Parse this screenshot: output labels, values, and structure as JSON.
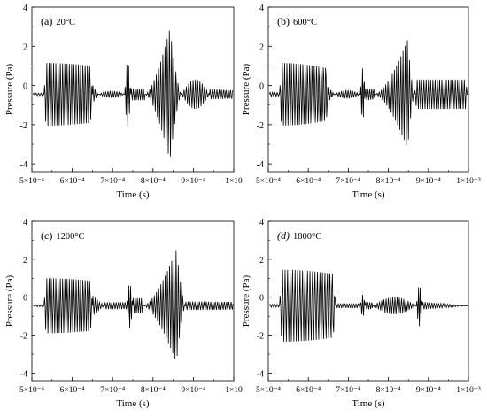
{
  "figure": {
    "background": "#ffffff",
    "line_color": "#000000"
  },
  "chart_data": [
    {
      "type": "line",
      "panel_label": "(a)",
      "panel_temp": "20°C",
      "xlabel": "Time (s)",
      "ylabel": "Pressure (Pa)",
      "xlim": [
        0.0005,
        0.001
      ],
      "ylim": [
        -4.4,
        4
      ],
      "xticks": [
        "5×10⁻⁴",
        "6×10⁻⁴",
        "7×10⁻⁴",
        "8×10⁻⁴",
        "9×10⁻⁴",
        "1×10"
      ],
      "yticks": [
        "4",
        "2",
        "0",
        "-2",
        "-4"
      ],
      "ytick_values": [
        4,
        2,
        0,
        -2,
        -4
      ],
      "signal": {
        "baseline": -0.45,
        "segments": [
          {
            "t0": 0.000503,
            "t1": 0.00053,
            "amp": 0.06,
            "period": 6e-06
          },
          {
            "t0": 0.00053,
            "t1": 0.00065,
            "amp": 1.6,
            "period": 5.6e-06,
            "flat": true
          },
          {
            "t0": 0.00065,
            "t1": 0.000665,
            "amp": 0.5,
            "period": 5.2e-06,
            "decay": true
          },
          {
            "t0": 0.000665,
            "t1": 0.00073,
            "amp": 0.18,
            "period": 5.5e-06,
            "bump": true
          },
          {
            "t0": 0.00073,
            "t1": 0.000745,
            "amp": 1.7,
            "period": 4.2e-06,
            "burst": true
          },
          {
            "t0": 0.000745,
            "t1": 0.00078,
            "amp": 0.3,
            "period": 5e-06
          },
          {
            "t0": 0.00078,
            "t1": 0.00087,
            "amp": 3.6,
            "period": 5.4e-06,
            "swell": true,
            "peak_at": 0.000842
          },
          {
            "t0": 0.00087,
            "t1": 0.00094,
            "amp": 0.75,
            "period": 5.6e-06,
            "bump": true
          },
          {
            "t0": 0.00094,
            "t1": 0.000998,
            "amp": 0.25,
            "period": 5.6e-06
          }
        ]
      }
    },
    {
      "type": "line",
      "panel_label": "(b)",
      "panel_temp": "600°C",
      "xlabel": "Time (s)",
      "ylabel": "Pressure (Pa)",
      "xlim": [
        0.0005,
        0.001
      ],
      "ylim": [
        -4.4,
        4
      ],
      "xticks": [
        "5×10⁻⁴",
        "6×10⁻⁴",
        "7×10⁻⁴",
        "8×10⁻⁴",
        "9×10⁻⁴",
        "1×10⁻³"
      ],
      "yticks": [
        "4",
        "2",
        "0",
        "-2",
        "-4"
      ],
      "ytick_values": [
        4,
        2,
        0,
        -2,
        -4
      ],
      "signal": {
        "baseline": -0.45,
        "segments": [
          {
            "t0": 0.000503,
            "t1": 0.000528,
            "amp": 0.1,
            "period": 6e-06
          },
          {
            "t0": 0.000528,
            "t1": 0.00065,
            "amp": 1.6,
            "period": 5.7e-06,
            "flat": true
          },
          {
            "t0": 0.00065,
            "t1": 0.000665,
            "amp": 0.4,
            "period": 5.2e-06,
            "decay": true
          },
          {
            "t0": 0.000665,
            "t1": 0.00073,
            "amp": 0.22,
            "period": 5.5e-06,
            "bump": true
          },
          {
            "t0": 0.00073,
            "t1": 0.000742,
            "amp": 1.4,
            "period": 4.2e-06,
            "burst": true
          },
          {
            "t0": 0.000742,
            "t1": 0.000765,
            "amp": 0.3,
            "period": 5e-06
          },
          {
            "t0": 0.000765,
            "t1": 0.000865,
            "amp": 2.8,
            "period": 5.4e-06,
            "swell": true,
            "peak_at": 0.000848
          },
          {
            "t0": 0.000865,
            "t1": 0.000998,
            "amp": 0.75,
            "period": 5.6e-06,
            "flat": true
          }
        ]
      }
    },
    {
      "type": "line",
      "panel_label": "(c)",
      "panel_temp": "1200°C",
      "xlabel": "Time (s)",
      "ylabel": "Pressure (Pa)",
      "xlim": [
        0.0005,
        0.001
      ],
      "ylim": [
        -4.4,
        4
      ],
      "xticks": [
        "5×10⁻⁴",
        "6×10⁻⁴",
        "7×10⁻⁴",
        "8×10⁻⁴",
        "9×10⁻⁴",
        "1×10"
      ],
      "yticks": [
        "4",
        "2",
        "0",
        "-2",
        "-4"
      ],
      "ytick_values": [
        4,
        2,
        0,
        -2,
        -4
      ],
      "signal": {
        "baseline": -0.45,
        "segments": [
          {
            "t0": 0.000503,
            "t1": 0.00053,
            "amp": 0.05,
            "period": 6e-06
          },
          {
            "t0": 0.00053,
            "t1": 0.00065,
            "amp": 1.45,
            "period": 5.6e-06,
            "flat": true
          },
          {
            "t0": 0.00065,
            "t1": 0.00068,
            "amp": 0.55,
            "period": 5.4e-06,
            "decay": true
          },
          {
            "t0": 0.00068,
            "t1": 0.000735,
            "amp": 0.18,
            "period": 5.5e-06
          },
          {
            "t0": 0.000735,
            "t1": 0.00075,
            "amp": 1.2,
            "period": 4.2e-06,
            "burst": true
          },
          {
            "t0": 0.00075,
            "t1": 0.000775,
            "amp": 0.4,
            "period": 5e-06
          },
          {
            "t0": 0.000775,
            "t1": 0.00088,
            "amp": 3.1,
            "period": 5.4e-06,
            "swell": true,
            "peak_at": 0.000858
          },
          {
            "t0": 0.00088,
            "t1": 0.000998,
            "amp": 0.22,
            "period": 5.6e-06
          }
        ]
      }
    },
    {
      "type": "line",
      "panel_label": "(d)",
      "panel_temp": "1800°C",
      "xlabel": "Time (s)",
      "ylabel": "Pressure (Pa)",
      "xlim": [
        0.0005,
        0.001
      ],
      "ylim": [
        -4.4,
        4
      ],
      "xticks": [
        "5×10⁻⁴",
        "6×10⁻⁴",
        "7×10⁻⁴",
        "8×10⁻⁴",
        "9×10⁻⁴",
        "1×10⁻³"
      ],
      "yticks": [
        "4",
        "2",
        "0",
        "-2",
        "-4"
      ],
      "ytick_values": [
        4,
        2,
        0,
        -2,
        -4
      ],
      "signal": {
        "baseline": -0.45,
        "segments": [
          {
            "t0": 0.000503,
            "t1": 0.000528,
            "amp": 0.08,
            "period": 6e-06
          },
          {
            "t0": 0.000528,
            "t1": 0.000668,
            "amp": 1.9,
            "period": 6.2e-06,
            "flat": true
          },
          {
            "t0": 0.000668,
            "t1": 0.00073,
            "amp": 0.12,
            "period": 5.5e-06
          },
          {
            "t0": 0.00073,
            "t1": 0.000742,
            "amp": 0.6,
            "period": 4.5e-06,
            "burst": true
          },
          {
            "t0": 0.000742,
            "t1": 0.00076,
            "amp": 0.2,
            "period": 5e-06
          },
          {
            "t0": 0.00076,
            "t1": 0.00087,
            "amp": 0.45,
            "period": 5.5e-06,
            "bump": true
          },
          {
            "t0": 0.00087,
            "t1": 0.000885,
            "amp": 1.1,
            "period": 4.2e-06,
            "burst": true
          },
          {
            "t0": 0.000885,
            "t1": 0.000998,
            "amp": 0.2,
            "period": 5.6e-06,
            "decay": true
          }
        ]
      }
    }
  ]
}
